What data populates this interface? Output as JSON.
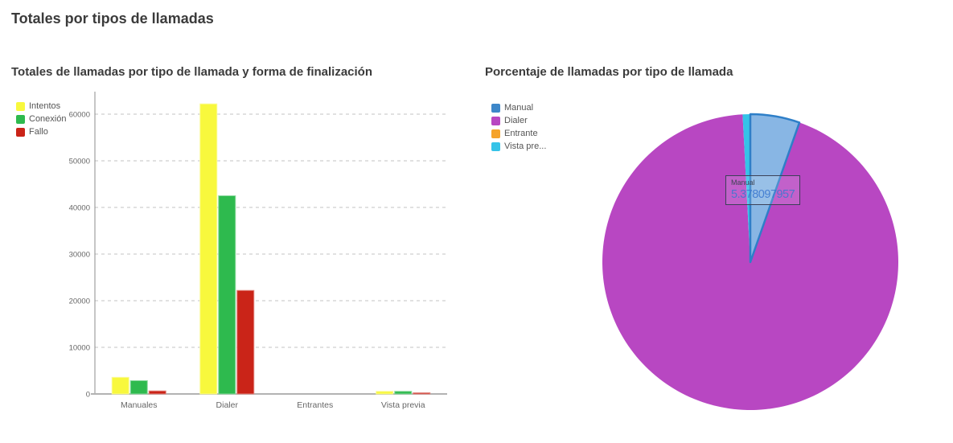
{
  "page": {
    "title": "Totales por tipos de llamadas"
  },
  "colors": {
    "title_text": "#3b3b3b",
    "axis_text": "#666666",
    "legend_text": "#555555",
    "gridline": "#c3c3c3"
  },
  "chart_data": [
    {
      "type": "bar",
      "title": "Totales de llamadas por tipo de llamada y forma de finalización",
      "categories": [
        "Manuales",
        "Dialer",
        "Entrantes",
        "Vista previa"
      ],
      "series": [
        {
          "name": "Intentos",
          "color": "#f8f83d",
          "values": [
            3560,
            62200,
            0,
            550
          ]
        },
        {
          "name": "Conexión",
          "color": "#2eba4e",
          "values": [
            2850,
            42500,
            0,
            560
          ]
        },
        {
          "name": "Fallo",
          "color": "#ca2418",
          "values": [
            650,
            22200,
            0,
            250
          ]
        }
      ],
      "xlabel": "",
      "ylabel": "",
      "ylim": [
        0,
        65000
      ],
      "yticks": [
        0,
        10000,
        20000,
        30000,
        40000,
        50000,
        60000
      ],
      "grid": "horizontal-dashed",
      "legend_position": "top-left"
    },
    {
      "type": "pie",
      "title": "Porcentaje de llamadas por tipo de llamada",
      "slices": [
        {
          "name": "Manual",
          "percent": 5.378097957,
          "color": "#3d87c9",
          "hover_fill": "#88b6e4",
          "stroke": "#2e7fc8",
          "state": "hovered"
        },
        {
          "name": "Dialer",
          "percent": 93.789,
          "color": "#b847c2"
        },
        {
          "name": "Entrante",
          "percent": 0,
          "color": "#f5a32b"
        },
        {
          "name": "Vista previa",
          "percent": 0.833,
          "color": "#35c3e8",
          "legend_label": "Vista pre..."
        }
      ],
      "legend_position": "top-left",
      "tooltip": {
        "label": "Manual",
        "value": "5.378097957"
      }
    }
  ]
}
